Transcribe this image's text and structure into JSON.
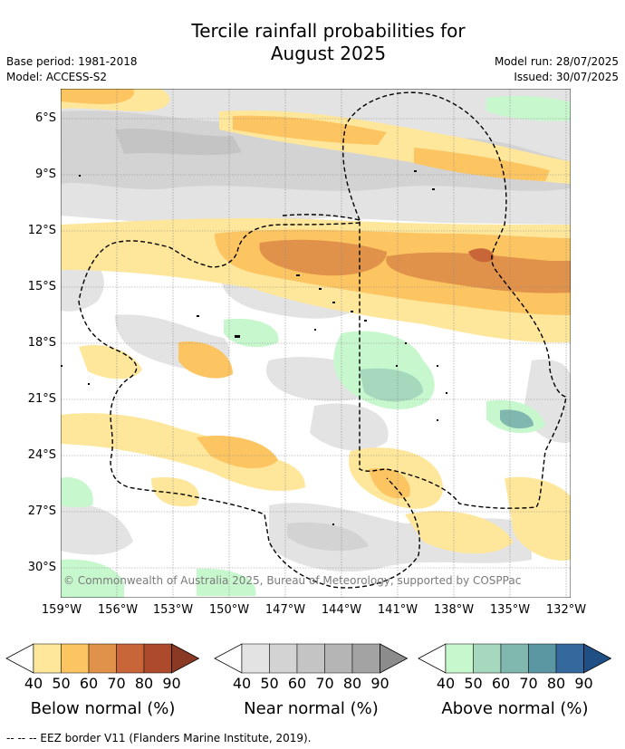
{
  "title": "Tercile rainfall probabilities for\nAugust 2025",
  "meta_left": [
    "Base period: 1981-2018",
    "Model: ACCESS-S2"
  ],
  "meta_right": [
    "Model run: 28/07/2025",
    "Issued: 30/07/2025"
  ],
  "map": {
    "lat_ticks": [
      "6°S",
      "9°S",
      "12°S",
      "15°S",
      "18°S",
      "21°S",
      "24°S",
      "27°S",
      "30°S"
    ],
    "lon_ticks": [
      "159°W",
      "156°W",
      "153°W",
      "150°W",
      "147°W",
      "144°W",
      "141°W",
      "138°W",
      "135°W",
      "132°W"
    ],
    "copyright": "© Commonwealth of Australia 2025, Bureau of Meteorology, supported by COSPPac"
  },
  "legends": [
    {
      "title": "Below normal (%)",
      "ticks": [
        "40",
        "50",
        "60",
        "70",
        "80",
        "90"
      ],
      "colors": [
        "#fee79b",
        "#fdc561",
        "#e0924a",
        "#c8663a",
        "#ad4a2c",
        "#8a3a24"
      ]
    },
    {
      "title": "Near normal (%)",
      "ticks": [
        "40",
        "50",
        "60",
        "70",
        "80",
        "90"
      ],
      "colors": [
        "#e3e3e3",
        "#d3d3d3",
        "#c4c4c4",
        "#b5b5b5",
        "#a3a3a3",
        "#8c8c8c"
      ]
    },
    {
      "title": "Above normal (%)",
      "ticks": [
        "40",
        "50",
        "60",
        "70",
        "80",
        "90"
      ],
      "colors": [
        "#c7f7cd",
        "#a5d8bd",
        "#80b8b0",
        "#5b97a3",
        "#35689c",
        "#1f4f85"
      ]
    }
  ],
  "footnote": "--  --  -- EEZ border V11 (Flanders Marine Institute, 2019)."
}
